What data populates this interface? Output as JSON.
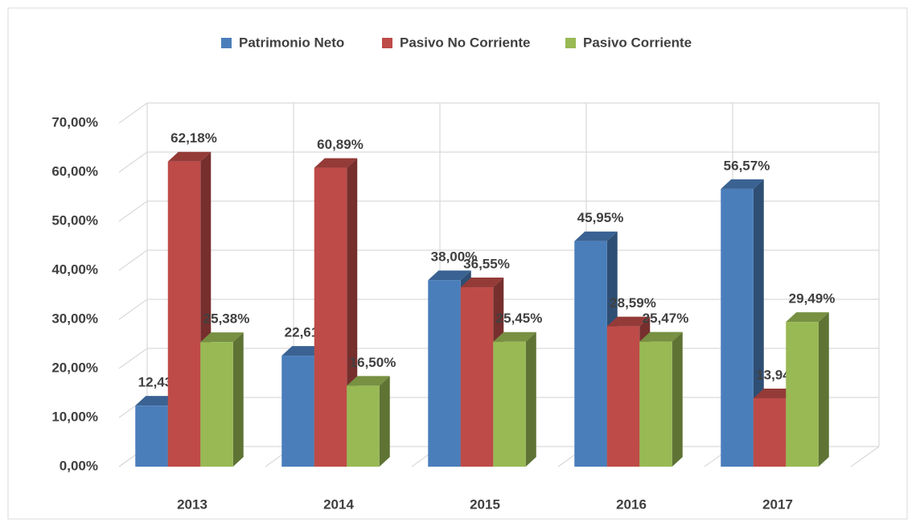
{
  "chart_data": {
    "type": "bar3d",
    "categories": [
      "2013",
      "2014",
      "2015",
      "2016",
      "2017"
    ],
    "series": [
      {
        "name": "Patrimonio Neto",
        "color": "#4a7ebb",
        "values": [
          12.43,
          22.61,
          38.0,
          45.95,
          56.57
        ],
        "value_labels": [
          "12,43%",
          "22,61%",
          "38,00%",
          "45,95%",
          "56,57%"
        ]
      },
      {
        "name": "Pasivo No Corriente",
        "color": "#be4b48",
        "values": [
          62.18,
          60.89,
          36.55,
          28.59,
          13.94
        ],
        "value_labels": [
          "62,18%",
          "60,89%",
          "36,55%",
          "28,59%",
          "13,94%"
        ]
      },
      {
        "name": "Pasivo Corriente",
        "color": "#98b954",
        "values": [
          25.38,
          16.5,
          25.45,
          25.47,
          29.49
        ],
        "value_labels": [
          "25,38%",
          "16,50%",
          "25,45%",
          "25,47%",
          "29,49%"
        ]
      }
    ],
    "ylim": [
      0,
      70
    ],
    "yticks": [
      {
        "value": 0,
        "label": "0,00%"
      },
      {
        "value": 10,
        "label": "10,00%"
      },
      {
        "value": 20,
        "label": "20,00%"
      },
      {
        "value": 30,
        "label": "30,00%"
      },
      {
        "value": 40,
        "label": "40,00%"
      },
      {
        "value": 50,
        "label": "50,00%"
      },
      {
        "value": 60,
        "label": "60,00%"
      },
      {
        "value": 70,
        "label": "70,00%"
      }
    ],
    "grid": true,
    "legend": "top"
  }
}
